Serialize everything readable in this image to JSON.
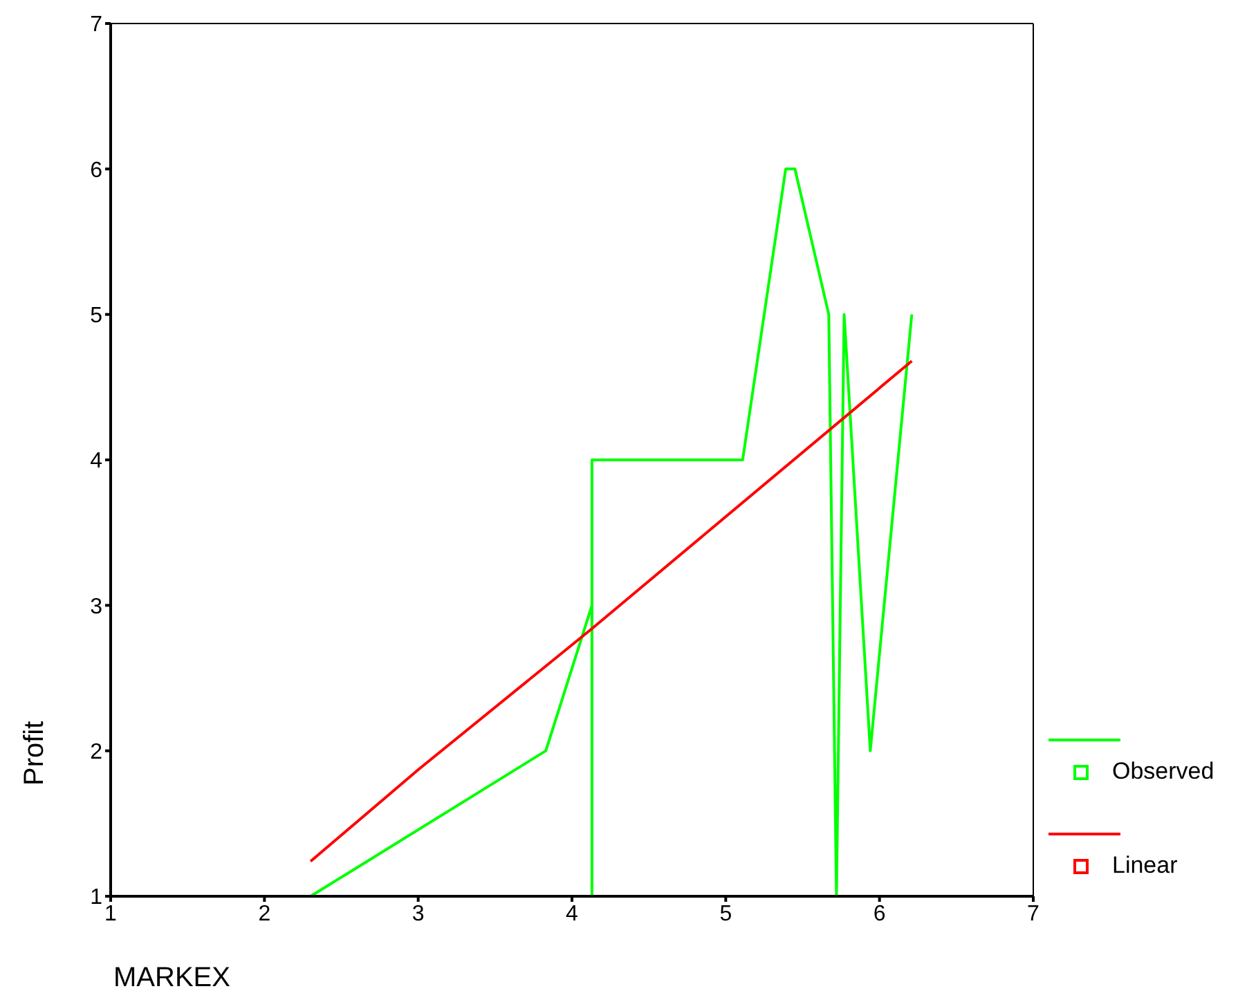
{
  "chart_data": {
    "type": "line",
    "xlabel": "MARKEX",
    "ylabel": "Profit",
    "xlim": [
      1,
      7
    ],
    "xticks": [
      1,
      2,
      3,
      4,
      5,
      6,
      7
    ],
    "ylim": [
      1,
      7
    ],
    "yticks": [
      1,
      2,
      3,
      4,
      5,
      6,
      7
    ],
    "legend": "bottom right",
    "marker": "none",
    "line_style": "solid",
    "series": [
      {
        "name": "Observed",
        "color": "#00ff00",
        "x": [
          2.3,
          3.83,
          4.13,
          4.13,
          4.13,
          5.11,
          5.39,
          5.45,
          5.67,
          5.72,
          5.77,
          5.94,
          6.21
        ],
        "values": [
          1,
          2,
          3,
          1,
          4,
          4,
          6,
          6,
          5,
          1,
          5,
          2,
          5
        ]
      },
      {
        "name": "Linear",
        "color": "#ff0000",
        "x": [
          2.3,
          3,
          4.13,
          6.21
        ],
        "values": [
          1.24,
          1.87,
          2.84,
          4.68
        ]
      }
    ]
  }
}
